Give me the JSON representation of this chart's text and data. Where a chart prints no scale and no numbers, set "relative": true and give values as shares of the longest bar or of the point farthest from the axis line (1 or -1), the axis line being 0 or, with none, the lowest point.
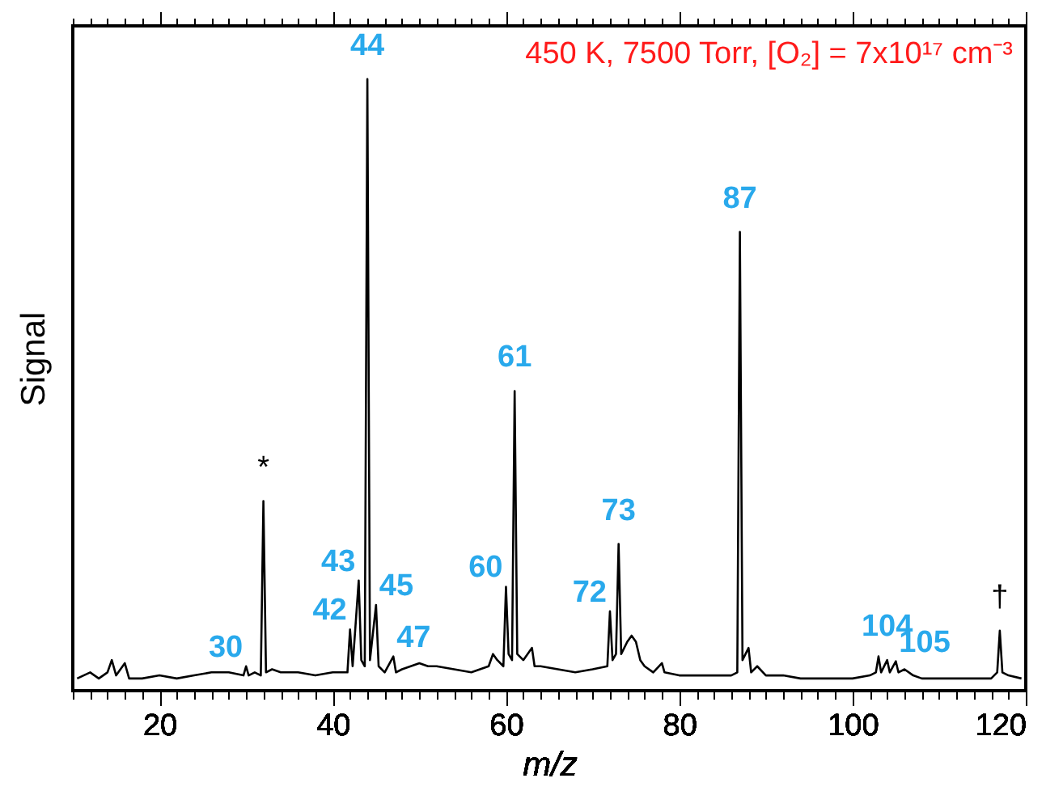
{
  "chart_data": {
    "type": "line",
    "relative": true,
    "xlabel": "m/z",
    "ylabel": "Signal",
    "xlim": [
      10,
      120
    ],
    "xticks": [
      {
        "value": 10,
        "label": null
      },
      {
        "value": 12,
        "label": null
      },
      {
        "value": 14,
        "label": null
      },
      {
        "value": 16,
        "label": null
      },
      {
        "value": 18,
        "label": null
      },
      20,
      {
        "value": 22,
        "label": null
      },
      {
        "value": 24,
        "label": null
      },
      {
        "value": 26,
        "label": null
      },
      {
        "value": 28,
        "label": null
      },
      {
        "value": 30,
        "label": null
      },
      {
        "value": 32,
        "label": null
      },
      {
        "value": 34,
        "label": null
      },
      {
        "value": 36,
        "label": null
      },
      {
        "value": 38,
        "label": null
      },
      40,
      {
        "value": 42,
        "label": null
      },
      {
        "value": 44,
        "label": null
      },
      {
        "value": 46,
        "label": null
      },
      {
        "value": 48,
        "label": null
      },
      {
        "value": 50,
        "label": null
      },
      {
        "value": 52,
        "label": null
      },
      {
        "value": 54,
        "label": null
      },
      {
        "value": 56,
        "label": null
      },
      {
        "value": 58,
        "label": null
      },
      60,
      {
        "value": 62,
        "label": null
      },
      {
        "value": 64,
        "label": null
      },
      {
        "value": 66,
        "label": null
      },
      {
        "value": 68,
        "label": null
      },
      {
        "value": 70,
        "label": null
      },
      {
        "value": 72,
        "label": null
      },
      {
        "value": 74,
        "label": null
      },
      {
        "value": 76,
        "label": null
      },
      {
        "value": 78,
        "label": null
      },
      80,
      {
        "value": 82,
        "label": null
      },
      {
        "value": 84,
        "label": null
      },
      {
        "value": 86,
        "label": null
      },
      {
        "value": 88,
        "label": null
      },
      {
        "value": 90,
        "label": null
      },
      {
        "value": 92,
        "label": null
      },
      {
        "value": 94,
        "label": null
      },
      {
        "value": 96,
        "label": null
      },
      {
        "value": 98,
        "label": null
      },
      100,
      {
        "value": 102,
        "label": null
      },
      {
        "value": 104,
        "label": null
      },
      {
        "value": 106,
        "label": null
      },
      {
        "value": 108,
        "label": null
      },
      {
        "value": 110,
        "label": null
      },
      {
        "value": 112,
        "label": null
      },
      {
        "value": 114,
        "label": null
      },
      {
        "value": 116,
        "label": null
      },
      {
        "value": 118,
        "label": null
      },
      120
    ],
    "series": [
      {
        "color": "#000000",
        "x": [
          10.5,
          12,
          13,
          14,
          14.5,
          15,
          16,
          16.5,
          18,
          20,
          22,
          24,
          26,
          28,
          29.7,
          30,
          30.3,
          31,
          31.7,
          32,
          32.3,
          33,
          34,
          36,
          38,
          40,
          41.7,
          42,
          42.3,
          43,
          43.3,
          43.7,
          44,
          44.3,
          45,
          45.3,
          46,
          47,
          47.3,
          48,
          49,
          50,
          51,
          52,
          54,
          56,
          58,
          58.5,
          59,
          59.7,
          60,
          60.3,
          60.7,
          61,
          61.3,
          62,
          63,
          63.3,
          64,
          66,
          68,
          70,
          71.7,
          72,
          72.3,
          72.7,
          73,
          73.3,
          74,
          74.5,
          75,
          75.5,
          76,
          77,
          78,
          78.3,
          80,
          82,
          84,
          86,
          86.7,
          87,
          87.3,
          88,
          88.3,
          89,
          90,
          92,
          94,
          96,
          98,
          100,
          102,
          102.7,
          103,
          103.3,
          104,
          104.3,
          105,
          105.3,
          106,
          107,
          108,
          110,
          112,
          114,
          116,
          116.7,
          117,
          117.3,
          118,
          119.5
        ],
        "values": [
          0.02,
          0.03,
          0.02,
          0.03,
          0.05,
          0.025,
          0.045,
          0.02,
          0.02,
          0.025,
          0.02,
          0.025,
          0.03,
          0.03,
          0.025,
          0.04,
          0.025,
          0.03,
          0.025,
          0.31,
          0.03,
          0.035,
          0.03,
          0.03,
          0.025,
          0.03,
          0.03,
          0.1,
          0.04,
          0.18,
          0.05,
          0.04,
          1.0,
          0.05,
          0.14,
          0.04,
          0.03,
          0.056,
          0.03,
          0.035,
          0.04,
          0.045,
          0.04,
          0.04,
          0.035,
          0.03,
          0.04,
          0.06,
          0.05,
          0.04,
          0.17,
          0.06,
          0.05,
          0.49,
          0.06,
          0.05,
          0.07,
          0.04,
          0.04,
          0.035,
          0.03,
          0.035,
          0.04,
          0.13,
          0.05,
          0.06,
          0.24,
          0.06,
          0.08,
          0.09,
          0.08,
          0.05,
          0.04,
          0.03,
          0.045,
          0.03,
          0.025,
          0.025,
          0.025,
          0.025,
          0.03,
          0.75,
          0.05,
          0.07,
          0.03,
          0.04,
          0.025,
          0.025,
          0.02,
          0.02,
          0.02,
          0.02,
          0.025,
          0.03,
          0.056,
          0.03,
          0.05,
          0.03,
          0.048,
          0.03,
          0.035,
          0.025,
          0.02,
          0.02,
          0.02,
          0.02,
          0.02,
          0.03,
          0.098,
          0.03,
          0.025,
          0.02
        ]
      }
    ],
    "annotations": [
      "450 K, 7500 Torr, [O₂] = 7x10¹⁷ cm⁻³",
      {
        "text": "30",
        "x": 30,
        "y": 0.04
      },
      {
        "text": "42",
        "x": 42,
        "y": 0.1
      },
      {
        "text": "43",
        "x": 43,
        "y": 0.18
      },
      {
        "text": "44",
        "x": 44,
        "y": 1.0
      },
      {
        "text": "45",
        "x": 45,
        "y": 0.14
      },
      {
        "text": "47",
        "x": 47,
        "y": 0.056
      },
      {
        "text": "60",
        "x": 60,
        "y": 0.17
      },
      {
        "text": "61",
        "x": 61,
        "y": 0.49
      },
      {
        "text": "72",
        "x": 72,
        "y": 0.13
      },
      {
        "text": "73",
        "x": 73,
        "y": 0.24
      },
      {
        "text": "87",
        "x": 87,
        "y": 0.75
      },
      {
        "text": "104",
        "x": 104,
        "y": 0.05
      },
      {
        "text": "105",
        "x": 105,
        "y": 0.048
      },
      {
        "text": "*",
        "x": 32,
        "y": 0.31
      },
      {
        "text": "†",
        "x": 117,
        "y": 0.098
      }
    ]
  }
}
